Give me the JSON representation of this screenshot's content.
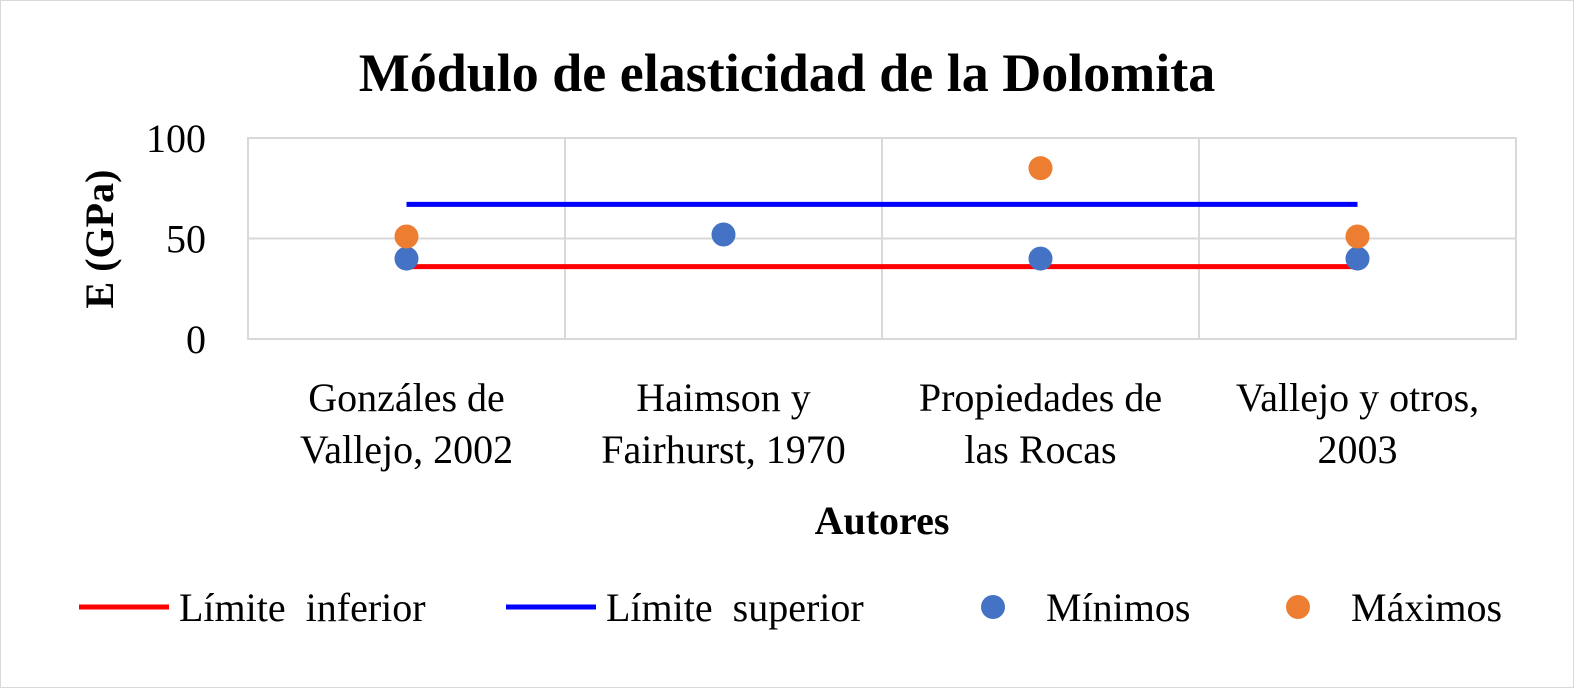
{
  "chart_data": {
    "type": "scatter",
    "title": "Módulo de elasticidad de la Dolomita",
    "xlabel": "Autores",
    "ylabel": "E (GPa)",
    "ylim": [
      0,
      100
    ],
    "yticks": [
      "0",
      "50",
      "100"
    ],
    "grid": true,
    "legend_position": "bottom",
    "categories": [
      [
        "Gonzáles de",
        "Vallejo, 2002"
      ],
      [
        "Haimson y",
        "Fairhurst, 1970"
      ],
      [
        "Propiedades de",
        "las Rocas"
      ],
      [
        "Vallejo y otros,",
        "2003"
      ]
    ],
    "series": [
      {
        "name": "Límite  inferior",
        "kind": "line",
        "color": "#ff0000",
        "values": [
          36,
          36,
          36,
          36
        ]
      },
      {
        "name": "Límite  superior",
        "kind": "line",
        "color": "#0000ff",
        "values": [
          67,
          67,
          67,
          67
        ]
      },
      {
        "name": "Mínimos",
        "kind": "marker",
        "color": "#4472c4",
        "values": [
          40,
          52,
          40,
          40
        ]
      },
      {
        "name": "Máximos",
        "kind": "marker",
        "color": "#ed7d31",
        "values": [
          51,
          null,
          85,
          51
        ]
      }
    ]
  }
}
